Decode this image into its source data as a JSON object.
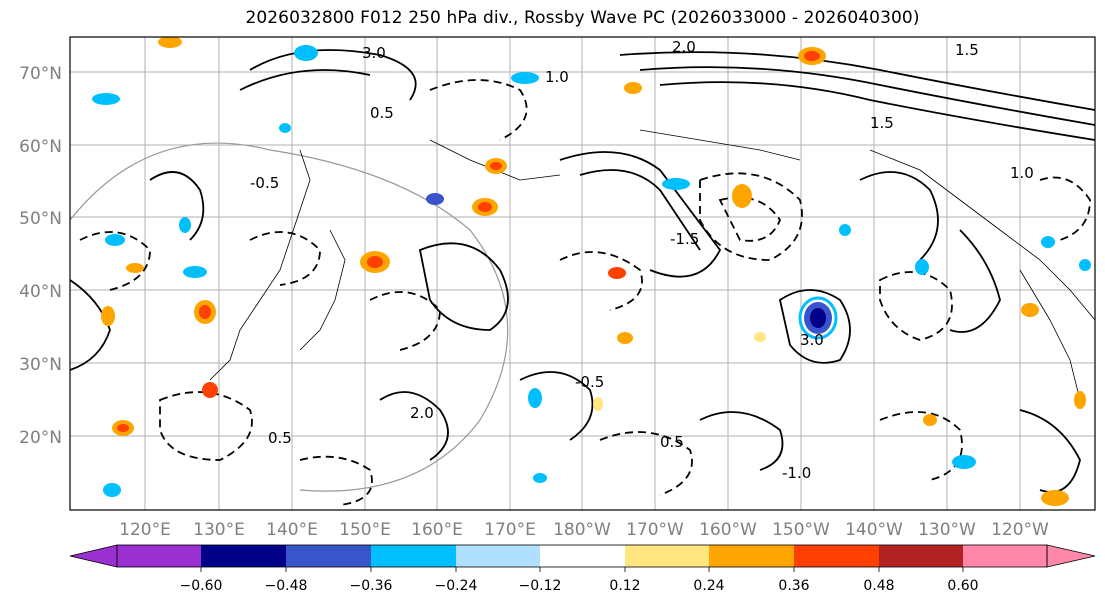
{
  "title": "2026032800 F012 250 hPa div., Rossby Wave PC (2026033000 - 2026040300)",
  "map": {
    "latitude_labels": [
      "70°N",
      "60°N",
      "50°N",
      "40°N",
      "30°N",
      "20°N"
    ],
    "longitude_labels": [
      "120°E",
      "130°E",
      "140°E",
      "150°E",
      "160°E",
      "170°E",
      "180°W",
      "170°W",
      "160°W",
      "150°W",
      "140°W",
      "130°W",
      "120°W"
    ],
    "contour_labels": [
      "3.0",
      "2.0",
      "1.5",
      "1.0",
      "0.5",
      "-0.5",
      "-1.0",
      "-1.5"
    ],
    "axis_label_color": "#808080"
  },
  "colorbar": {
    "ticks": [
      "−0.60",
      "−0.48",
      "−0.36",
      "−0.24",
      "−0.12",
      "0.12",
      "0.24",
      "0.36",
      "0.48",
      "0.60"
    ],
    "under_color": "#9b30d0",
    "colors": [
      "#000088",
      "#3a55cc",
      "#00bfff",
      "#b0e0ff",
      "#ffffff",
      "#ffe680",
      "#ffa500",
      "#ff4000",
      "#b22222"
    ],
    "over_color": "#ff88aa"
  }
}
